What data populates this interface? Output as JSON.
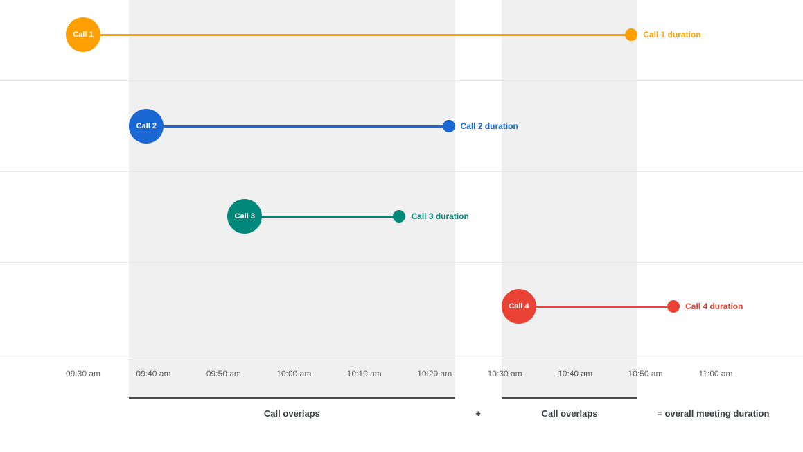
{
  "chart_data": {
    "type": "timeline",
    "x_ticks": [
      "09:30 am",
      "09:40 am",
      "09:50 am",
      "10:00 am",
      "10:10 am",
      "10:20 am",
      "10:30 am",
      "10:40 am",
      "10:50 am",
      "11:00 am"
    ],
    "x_range": [
      "09:30 am",
      "11:00 am"
    ],
    "grid": true,
    "calls": [
      {
        "name": "Call 1",
        "start": "09:30 am",
        "end": "10:48 am",
        "duration_label": "Call 1 duration",
        "color": "#FFA000"
      },
      {
        "name": "Call 2",
        "start": "09:39 am",
        "end": "10:22 am",
        "duration_label": "Call 2 duration",
        "color": "#1967D2"
      },
      {
        "name": "Call 3",
        "start": "09:53 am",
        "end": "10:15 am",
        "duration_label": "Call 3 duration",
        "color": "#00897B"
      },
      {
        "name": "Call 4",
        "start": "10:32 am",
        "end": "10:54 am",
        "duration_label": "Call 4 duration",
        "color": "#EA4335"
      }
    ],
    "overlaps": [
      {
        "start": "09:39 am",
        "end": "10:22 am",
        "label": "Call overlaps"
      },
      {
        "start": "10:32 am",
        "end": "10:48 am",
        "label": "Call overlaps"
      }
    ],
    "annotations": {
      "plus": "+",
      "equals": "= overall meeting duration"
    },
    "colors": {
      "band": "#f0f0f0",
      "band_underline": "#4a4a4a",
      "gridline": "#e8e8e8",
      "axis_line": "#e0e0e0",
      "tick_text": "#616161",
      "caption_text": "#3c4043"
    }
  }
}
